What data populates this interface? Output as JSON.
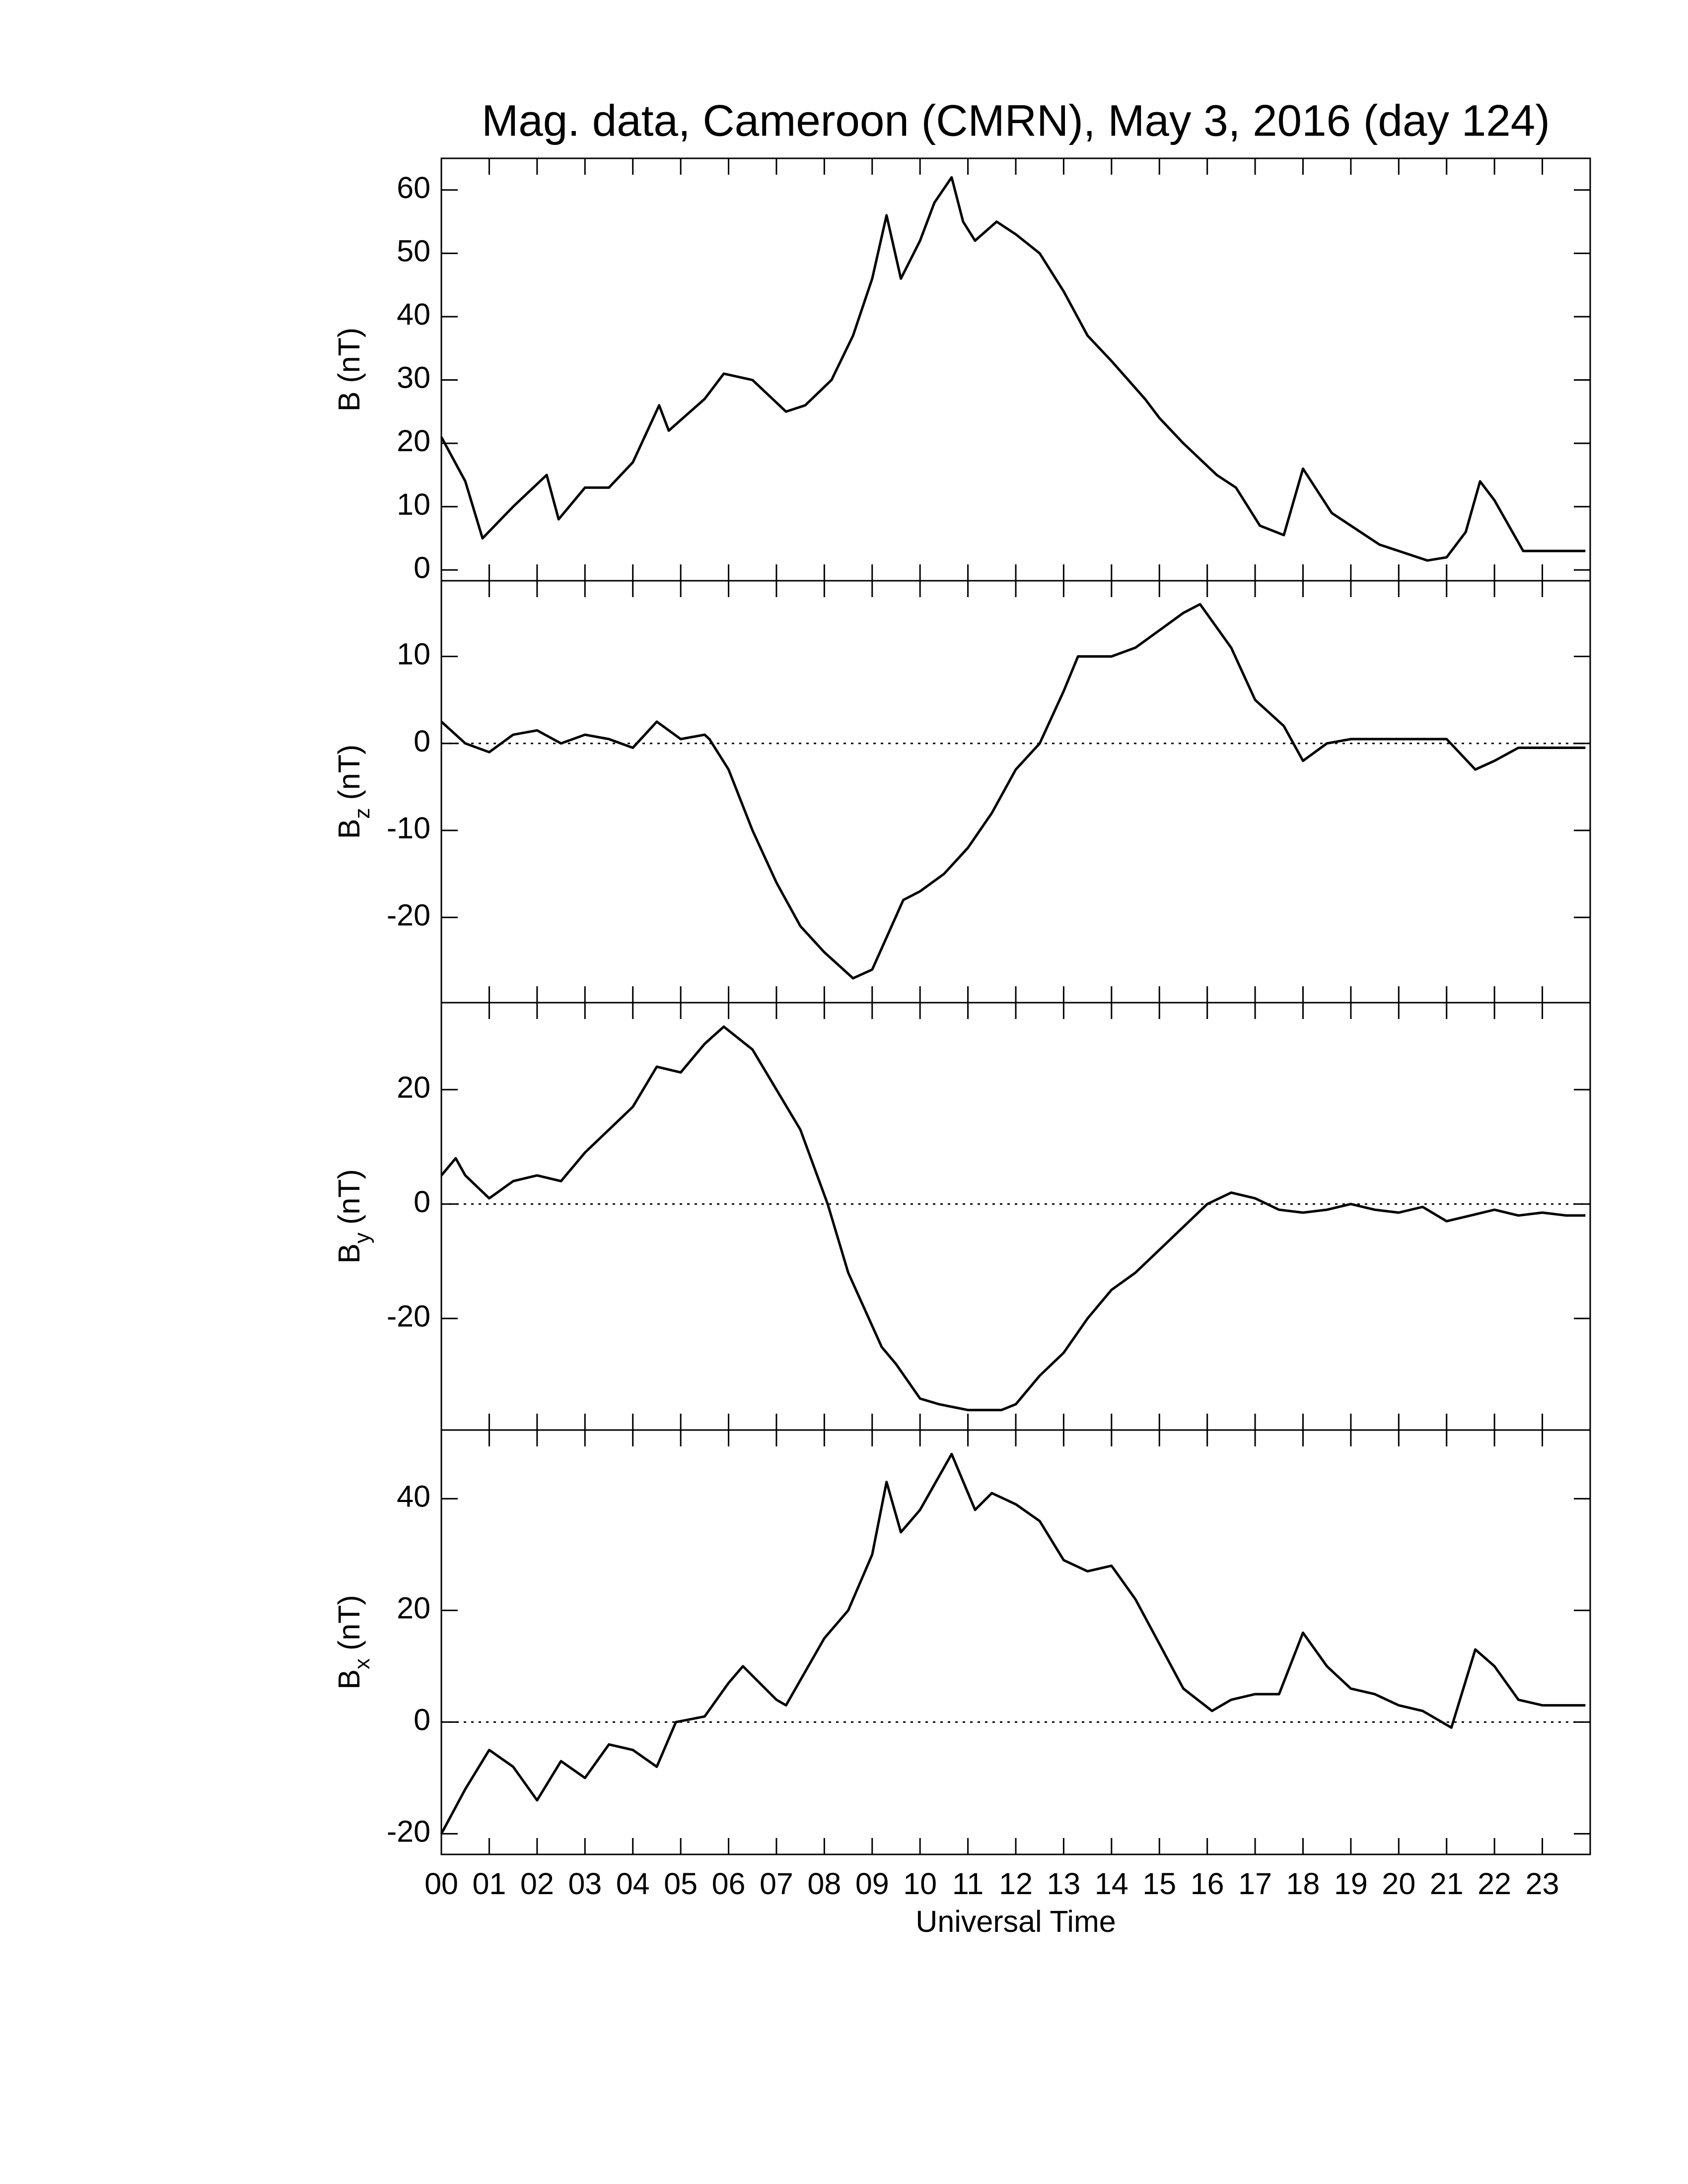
{
  "chart_data": [
    {
      "type": "line",
      "title": "Mag. data, Cameroon (CMRN), May 3, 2016 (day 124)",
      "ylabel": "B (nT)",
      "x": [
        0,
        0.5,
        0.86,
        1.5,
        2.2,
        2.45,
        3,
        3.5,
        4,
        4.55,
        4.75,
        5.5,
        5.9,
        6.5,
        7.2,
        7.6,
        8.15,
        8.6,
        9,
        9.3,
        9.6,
        10,
        10.3,
        10.66,
        10.9,
        11.15,
        11.6,
        12,
        12.5,
        13,
        13.5,
        14,
        14.7,
        15,
        15.5,
        16.2,
        16.6,
        17.1,
        17.6,
        18,
        18.6,
        19,
        19.6,
        20,
        20.6,
        21,
        21.4,
        21.7,
        22,
        22.6,
        23,
        23.5,
        23.9
      ],
      "values": [
        21,
        14,
        5,
        10,
        15,
        8,
        13,
        13,
        17,
        26,
        22,
        27,
        31,
        30,
        25,
        26,
        30,
        37,
        46,
        56,
        46,
        52,
        58,
        62,
        55,
        52,
        55,
        53,
        50,
        44,
        37,
        33,
        27,
        24,
        20,
        15,
        13,
        7,
        5.5,
        16,
        9,
        7,
        4,
        3,
        1.5,
        2,
        6,
        14,
        11,
        3,
        3,
        3,
        3
      ],
      "color": "#000000",
      "xlim": [
        0,
        24
      ],
      "xticks": [
        0,
        1,
        2,
        3,
        4,
        5,
        6,
        7,
        8,
        9,
        10,
        11,
        12,
        13,
        14,
        15,
        16,
        17,
        18,
        19,
        20,
        21,
        22,
        23
      ],
      "ylim": [
        -1.7,
        65
      ],
      "yticks": [
        0,
        10,
        20,
        30,
        40,
        50,
        60
      ],
      "zero_line": false
    },
    {
      "type": "line",
      "ylabel": {
        "text": "B",
        "sub": "z",
        "unit": "(nT)"
      },
      "x": [
        0,
        0.5,
        1,
        1.5,
        2,
        2.5,
        3,
        3.5,
        4,
        4.5,
        5,
        5.5,
        5.6,
        6,
        6.5,
        7,
        7.5,
        8,
        8.6,
        9,
        9.65,
        10,
        10.5,
        11,
        11.5,
        12,
        12.5,
        13,
        13.3,
        14,
        14.5,
        15,
        15.5,
        15.85,
        16.5,
        17,
        17.6,
        18,
        18.5,
        19,
        19.5,
        20,
        20.5,
        21,
        21.6,
        22,
        22.5,
        23,
        23.5,
        23.9
      ],
      "values": [
        2.5,
        0,
        -1,
        1,
        1.5,
        0,
        1,
        0.5,
        -0.5,
        2.5,
        0.5,
        1,
        0.5,
        -3,
        -10,
        -16,
        -21,
        -24,
        -27,
        -26,
        -18,
        -17,
        -15,
        -12,
        -8,
        -3,
        0,
        6,
        10,
        10,
        11,
        13,
        15,
        16,
        11,
        5,
        2,
        -2,
        0,
        0.5,
        0.5,
        0.5,
        0.5,
        0.5,
        -3,
        -2,
        -0.5,
        -0.5,
        -0.5,
        -0.5
      ],
      "color": "#000000",
      "xlim": [
        0,
        24
      ],
      "xticks": [
        0,
        1,
        2,
        3,
        4,
        5,
        6,
        7,
        8,
        9,
        10,
        11,
        12,
        13,
        14,
        15,
        16,
        17,
        18,
        19,
        20,
        21,
        22,
        23
      ],
      "ylim": [
        -29.8,
        18.7
      ],
      "yticks": [
        -20,
        -10,
        0,
        10
      ],
      "zero_line": true
    },
    {
      "type": "line",
      "ylabel": {
        "text": "B",
        "sub": "y",
        "unit": "(nT)"
      },
      "x": [
        0,
        0.3,
        0.5,
        1,
        1.5,
        2,
        2.5,
        3,
        3.5,
        4,
        4.5,
        5,
        5.5,
        5.9,
        6.5,
        7,
        7.5,
        8.07,
        8.5,
        9.2,
        9.5,
        10,
        10.4,
        11,
        11.7,
        12,
        12.5,
        13,
        13.5,
        14,
        14.5,
        15,
        15.5,
        16,
        16.5,
        17,
        17.5,
        18,
        18.5,
        19,
        19.5,
        20,
        20.5,
        21,
        21.5,
        22,
        22.5,
        23,
        23.5,
        23.9
      ],
      "values": [
        5,
        8,
        5,
        1,
        4,
        5,
        4,
        9,
        13,
        17,
        24,
        23,
        28,
        31,
        27,
        20,
        13,
        0,
        -12,
        -25,
        -28,
        -34,
        -35,
        -36,
        -36,
        -35,
        -30,
        -26,
        -20,
        -15,
        -12,
        -8,
        -4,
        0,
        2,
        1,
        -1,
        -1.5,
        -1,
        0,
        -1,
        -1.5,
        -0.5,
        -3,
        -2,
        -1,
        -2,
        -1.5,
        -2,
        -2
      ],
      "color": "#000000",
      "xlim": [
        0,
        24
      ],
      "xticks": [
        0,
        1,
        2,
        3,
        4,
        5,
        6,
        7,
        8,
        9,
        10,
        11,
        12,
        13,
        14,
        15,
        16,
        17,
        18,
        19,
        20,
        21,
        22,
        23
      ],
      "ylim": [
        -39.5,
        35.2
      ],
      "yticks": [
        -20,
        0,
        20
      ],
      "zero_line": true
    },
    {
      "type": "line",
      "ylabel": {
        "text": "B",
        "sub": "x",
        "unit": "(nT)"
      },
      "xlabel": "Universal Time",
      "x": [
        0,
        0.5,
        1,
        1.5,
        2,
        2.5,
        3,
        3.5,
        4,
        4.5,
        4.9,
        5.5,
        6,
        6.3,
        7,
        7.2,
        8,
        8.5,
        9,
        9.3,
        9.6,
        10,
        10.66,
        11.15,
        11.5,
        12,
        12.5,
        13,
        13.5,
        14,
        14.5,
        15,
        15.5,
        16.1,
        16.5,
        17,
        17.5,
        18,
        18.5,
        19,
        19.5,
        20,
        20.5,
        21.1,
        21.6,
        22,
        22.5,
        23,
        23.5,
        23.9
      ],
      "values": [
        -20,
        -12,
        -5,
        -8,
        -14,
        -7,
        -10,
        -4,
        -5,
        -8,
        0,
        1,
        7,
        10,
        4,
        3,
        15,
        20,
        30,
        43,
        34,
        38,
        48,
        38,
        41,
        39,
        36,
        29,
        27,
        28,
        22,
        14,
        6,
        2,
        4,
        5,
        5,
        16,
        10,
        6,
        5,
        3,
        2,
        -1,
        13,
        10,
        4,
        3,
        3,
        3
      ],
      "color": "#000000",
      "xlim": [
        0,
        24
      ],
      "xticks": [
        {
          "value": 0,
          "label": "00"
        },
        {
          "value": 1,
          "label": "01"
        },
        {
          "value": 2,
          "label": "02"
        },
        {
          "value": 3,
          "label": "03"
        },
        {
          "value": 4,
          "label": "04"
        },
        {
          "value": 5,
          "label": "05"
        },
        {
          "value": 6,
          "label": "06"
        },
        {
          "value": 7,
          "label": "07"
        },
        {
          "value": 8,
          "label": "08"
        },
        {
          "value": 9,
          "label": "09"
        },
        {
          "value": 10,
          "label": "10"
        },
        {
          "value": 11,
          "label": "11"
        },
        {
          "value": 12,
          "label": "12"
        },
        {
          "value": 13,
          "label": "13"
        },
        {
          "value": 14,
          "label": "14"
        },
        {
          "value": 15,
          "label": "15"
        },
        {
          "value": 16,
          "label": "16"
        },
        {
          "value": 17,
          "label": "17"
        },
        {
          "value": 18,
          "label": "18"
        },
        {
          "value": 19,
          "label": "19"
        },
        {
          "value": 20,
          "label": "20"
        },
        {
          "value": 21,
          "label": "21"
        },
        {
          "value": 22,
          "label": "22"
        },
        {
          "value": 23,
          "label": "23"
        }
      ],
      "ylim": [
        -23.7,
        52.3
      ],
      "yticks": [
        -20,
        0,
        20,
        40
      ],
      "zero_line": true
    }
  ]
}
